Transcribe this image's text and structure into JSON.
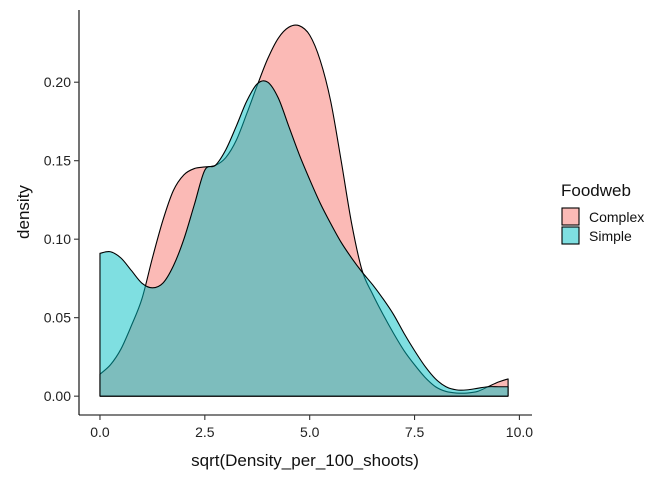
{
  "chart_data": {
    "type": "area",
    "chart_subtype": "density",
    "xlabel": "sqrt(Density_per_100_shoots)",
    "ylabel": "density",
    "xlim": [
      -0.5,
      10.3
    ],
    "ylim": [
      -0.012,
      0.246
    ],
    "x_ticks": [
      0.0,
      2.5,
      5.0,
      7.5,
      10.0
    ],
    "x_tick_labels": [
      "0.0",
      "2.5",
      "5.0",
      "7.5",
      "10.0"
    ],
    "y_ticks": [
      0.0,
      0.05,
      0.1,
      0.15,
      0.2
    ],
    "y_tick_labels": [
      "0.00",
      "0.05",
      "0.10",
      "0.15",
      "0.20"
    ],
    "grid": false,
    "legend": {
      "title": "Foodweb",
      "position": "right",
      "entries": [
        "Complex",
        "Simple"
      ]
    },
    "series": [
      {
        "name": "Complex",
        "color": "#F8766D",
        "opacity": 0.5,
        "x": [
          0.0,
          0.25,
          0.5,
          0.75,
          1.0,
          1.25,
          1.5,
          1.75,
          2.0,
          2.25,
          2.5,
          2.75,
          3.0,
          3.25,
          3.5,
          3.75,
          4.0,
          4.25,
          4.5,
          4.75,
          5.0,
          5.25,
          5.5,
          5.75,
          6.0,
          6.25,
          6.5,
          6.75,
          7.0,
          7.25,
          7.5,
          7.75,
          8.0,
          8.25,
          8.5,
          8.75,
          9.0,
          9.25,
          9.5,
          9.73
        ],
        "values": [
          0.014,
          0.02,
          0.03,
          0.045,
          0.062,
          0.088,
          0.112,
          0.131,
          0.141,
          0.145,
          0.146,
          0.147,
          0.152,
          0.163,
          0.18,
          0.198,
          0.215,
          0.228,
          0.235,
          0.236,
          0.23,
          0.214,
          0.188,
          0.15,
          0.11,
          0.08,
          0.065,
          0.052,
          0.04,
          0.029,
          0.02,
          0.012,
          0.006,
          0.003,
          0.002,
          0.002,
          0.003,
          0.006,
          0.009,
          0.011
        ]
      },
      {
        "name": "Simple",
        "color": "#00BFC4",
        "opacity": 0.5,
        "x": [
          0.0,
          0.25,
          0.5,
          0.75,
          1.0,
          1.25,
          1.5,
          1.75,
          2.0,
          2.25,
          2.5,
          2.75,
          3.0,
          3.25,
          3.5,
          3.75,
          4.0,
          4.25,
          4.5,
          4.75,
          5.0,
          5.25,
          5.5,
          5.75,
          6.0,
          6.25,
          6.5,
          6.75,
          7.0,
          7.25,
          7.5,
          7.75,
          8.0,
          8.25,
          8.5,
          8.75,
          9.0,
          9.25,
          9.5,
          9.73
        ],
        "values": [
          0.091,
          0.092,
          0.088,
          0.08,
          0.072,
          0.069,
          0.072,
          0.083,
          0.1,
          0.122,
          0.144,
          0.147,
          0.157,
          0.172,
          0.188,
          0.199,
          0.2,
          0.19,
          0.172,
          0.154,
          0.138,
          0.123,
          0.11,
          0.098,
          0.088,
          0.079,
          0.071,
          0.062,
          0.052,
          0.04,
          0.029,
          0.019,
          0.011,
          0.006,
          0.004,
          0.004,
          0.005,
          0.006,
          0.006,
          0.006
        ]
      }
    ]
  }
}
